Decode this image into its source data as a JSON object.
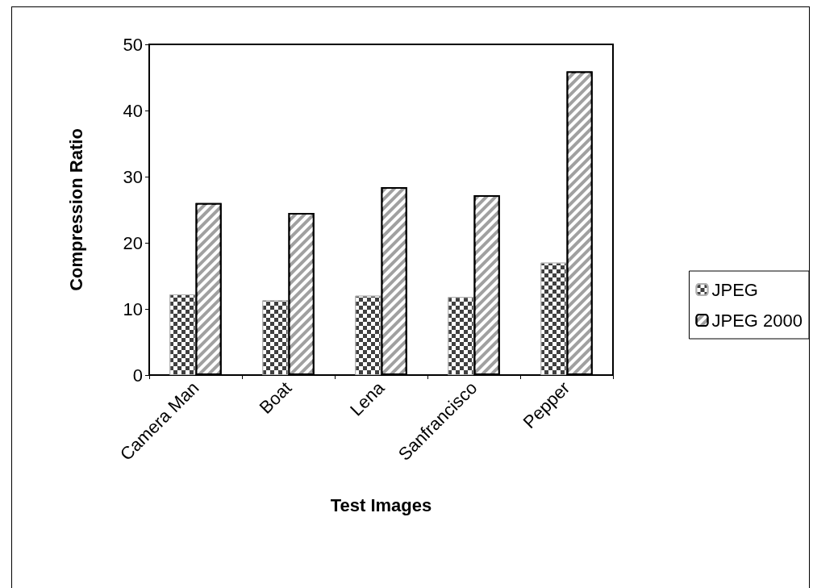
{
  "chart_data": {
    "type": "bar",
    "xlabel": "Test Images",
    "ylabel": "Compression Ratio",
    "categories": [
      "Camera Man",
      "Boat",
      "Lena",
      "Sanfrancisco",
      "Pepper"
    ],
    "series": [
      {
        "name": "JPEG",
        "color": "#404040",
        "values": [
          12.2,
          11.3,
          12.0,
          11.8,
          17.0
        ]
      },
      {
        "name": "JPEG 2000",
        "color": "#a0a0a0",
        "values": [
          26.0,
          24.5,
          28.4,
          27.2,
          45.9
        ]
      }
    ],
    "ylim": [
      0,
      50
    ],
    "yticks": [
      0,
      10,
      20,
      30,
      40,
      50
    ],
    "grid": false,
    "legend": "right"
  }
}
